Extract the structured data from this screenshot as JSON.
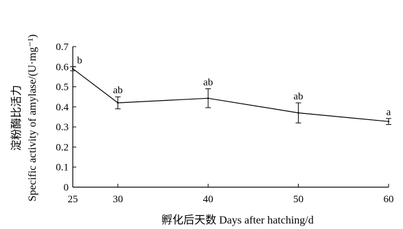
{
  "chart_data": {
    "type": "line",
    "xlabel": "孵化后天数 Days after hatching/d",
    "ylabel_cn": "淀粉酶比活力",
    "ylabel_en": "Specific activity of amylase/(U·mg⁻¹)",
    "xlim": [
      25,
      60
    ],
    "ylim": [
      0,
      0.7
    ],
    "xticks": [
      25,
      30,
      40,
      50,
      60
    ],
    "yticks": [
      0,
      0.1,
      0.2,
      0.3,
      0.4,
      0.5,
      0.6,
      0.7
    ],
    "grid": false,
    "series": [
      {
        "x": [
          25,
          30,
          40,
          50,
          60
        ],
        "y": [
          0.59,
          0.42,
          0.443,
          0.37,
          0.327
        ],
        "err": [
          0.01,
          0.03,
          0.047,
          0.05,
          0.015
        ],
        "labels": [
          "b",
          "ab",
          "ab",
          "ab",
          "a"
        ]
      }
    ],
    "colors": {
      "line": "#000000"
    }
  }
}
